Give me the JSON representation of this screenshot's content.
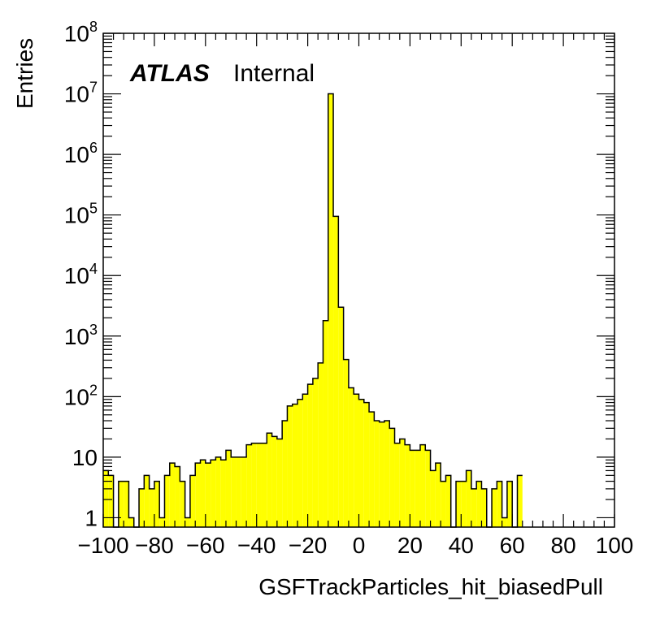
{
  "chart_data": {
    "type": "bar",
    "xlabel": "GSFTrackParticles_hit_biasedPull",
    "ylabel": "Entries",
    "xlim": [
      -100,
      100
    ],
    "ylim": [
      0.7,
      100000000
    ],
    "y_scale": "log",
    "grid": false,
    "fill_color": "#ffff00",
    "x_ticks": [
      -100,
      -80,
      -60,
      -40,
      -20,
      0,
      20,
      40,
      60,
      80,
      100
    ],
    "x_tick_labels": [
      "−100",
      "−80",
      "−60",
      "−40",
      "−20",
      "0",
      "20",
      "40",
      "60",
      "80",
      "100"
    ],
    "y_ticks": [
      {
        "value": 1,
        "base": "1",
        "exp": ""
      },
      {
        "value": 10,
        "base": "10",
        "exp": ""
      },
      {
        "value": 100,
        "base": "10",
        "exp": "2"
      },
      {
        "value": 1000,
        "base": "10",
        "exp": "3"
      },
      {
        "value": 10000,
        "base": "10",
        "exp": "4"
      },
      {
        "value": 100000,
        "base": "10",
        "exp": "5"
      },
      {
        "value": 1000000,
        "base": "10",
        "exp": "6"
      },
      {
        "value": 10000000,
        "base": "10",
        "exp": "7"
      },
      {
        "value": 100000000,
        "base": "10",
        "exp": "8"
      }
    ],
    "bin_edges_start": -100,
    "bin_width": 2,
    "values": [
      6,
      5,
      0,
      4,
      4,
      1,
      0,
      3,
      5,
      3,
      4,
      1,
      5,
      8,
      7,
      4,
      1,
      5,
      8,
      9,
      8,
      9,
      10,
      9,
      13,
      10,
      10,
      10,
      16,
      17,
      17,
      17,
      25,
      22,
      20,
      40,
      70,
      75,
      90,
      110,
      160,
      200,
      360,
      1800,
      10000000,
      95000,
      3000,
      410,
      140,
      110,
      90,
      80,
      56,
      40,
      38,
      40,
      30,
      17,
      20,
      16,
      13,
      13,
      16,
      13,
      6,
      8,
      4,
      5,
      0,
      4,
      4,
      6,
      3,
      4,
      3,
      0,
      3,
      4,
      1,
      4,
      0,
      5
    ]
  },
  "annotation": {
    "atlas": "ATLAS",
    "internal": "Internal"
  }
}
